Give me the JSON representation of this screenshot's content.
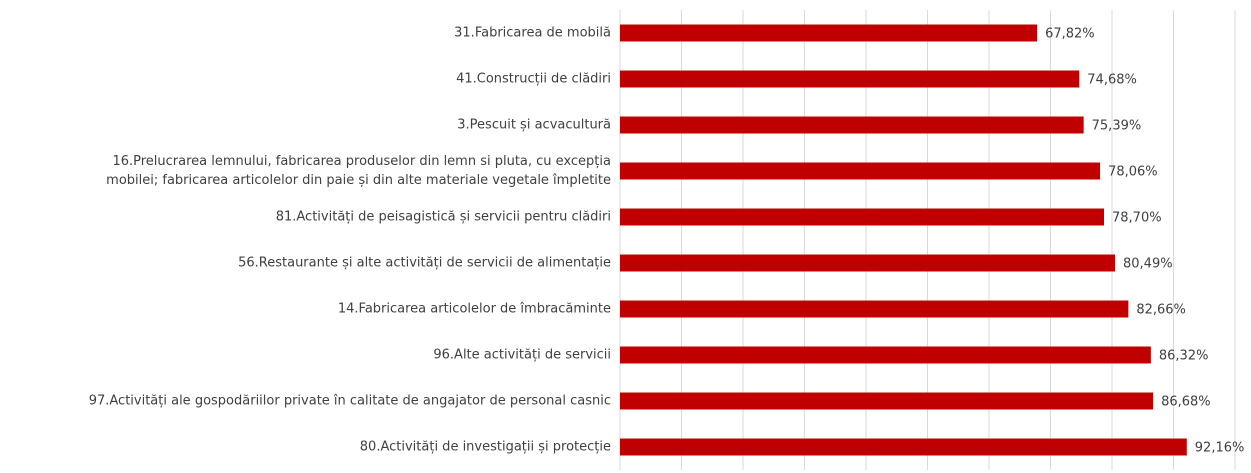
{
  "chart_data": {
    "type": "barh",
    "categories": [
      "31.Fabricarea de mobilă",
      "41.Construcții de clădiri",
      "3.Pescuit și acvacultură",
      "16.Prelucrarea lemnului, fabricarea produselor din lemn si pluta, cu excepția\nmobilei; fabricarea articolelor din paie și din alte materiale vegetale împletite",
      "81.Activități de peisagistică și servicii pentru clădiri",
      "56.Restaurante și alte activități de servicii de alimentație",
      "14.Fabricarea articolelor de îmbracăminte",
      "96.Alte activități de servicii",
      "97.Activități ale gospodăriilor private în calitate de angajator de personal casnic",
      "80.Activități de investigații și protecție"
    ],
    "values": [
      67.82,
      74.68,
      75.39,
      78.06,
      78.7,
      80.49,
      82.66,
      86.32,
      86.68,
      92.16
    ],
    "value_labels": [
      "67,82%",
      "74,68%",
      "75,39%",
      "78,06%",
      "78,70%",
      "80,49%",
      "82,66%",
      "86,32%",
      "86,68%",
      "92,16%"
    ],
    "color": "#c00000",
    "xlim": [
      0,
      100
    ],
    "xticks": [
      0,
      10,
      20,
      30,
      40,
      50,
      60,
      70,
      80,
      90,
      100
    ],
    "grid": true
  }
}
